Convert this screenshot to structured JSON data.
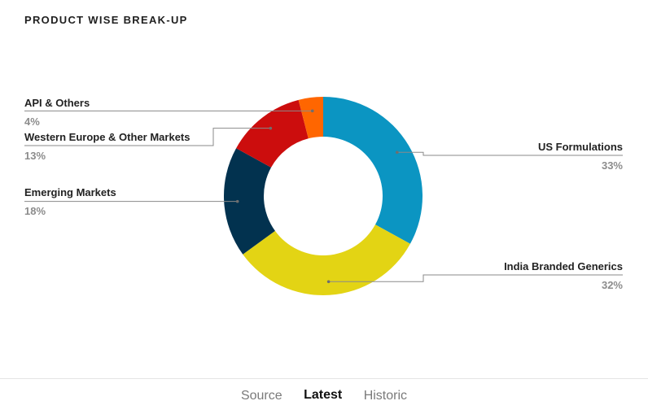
{
  "title": "PRODUCT WISE BREAK-UP",
  "chart_data": {
    "type": "pie",
    "donut": true,
    "slices": [
      {
        "name": "US Formulations",
        "value": 33,
        "label": "33%",
        "color": "#0b95c2"
      },
      {
        "name": "India Branded Generics",
        "value": 32,
        "label": "32%",
        "color": "#e3d414"
      },
      {
        "name": "Emerging Markets",
        "value": 18,
        "label": "18%",
        "color": "#02324f"
      },
      {
        "name": "Western Europe & Other Markets",
        "value": 13,
        "label": "13%",
        "color": "#cc0d0d"
      },
      {
        "name": "API & Others",
        "value": 4,
        "label": "4%",
        "color": "#ff6600"
      }
    ]
  },
  "tabs": [
    {
      "label": "Source",
      "active": false
    },
    {
      "label": "Latest",
      "active": true
    },
    {
      "label": "Historic",
      "active": false
    }
  ]
}
